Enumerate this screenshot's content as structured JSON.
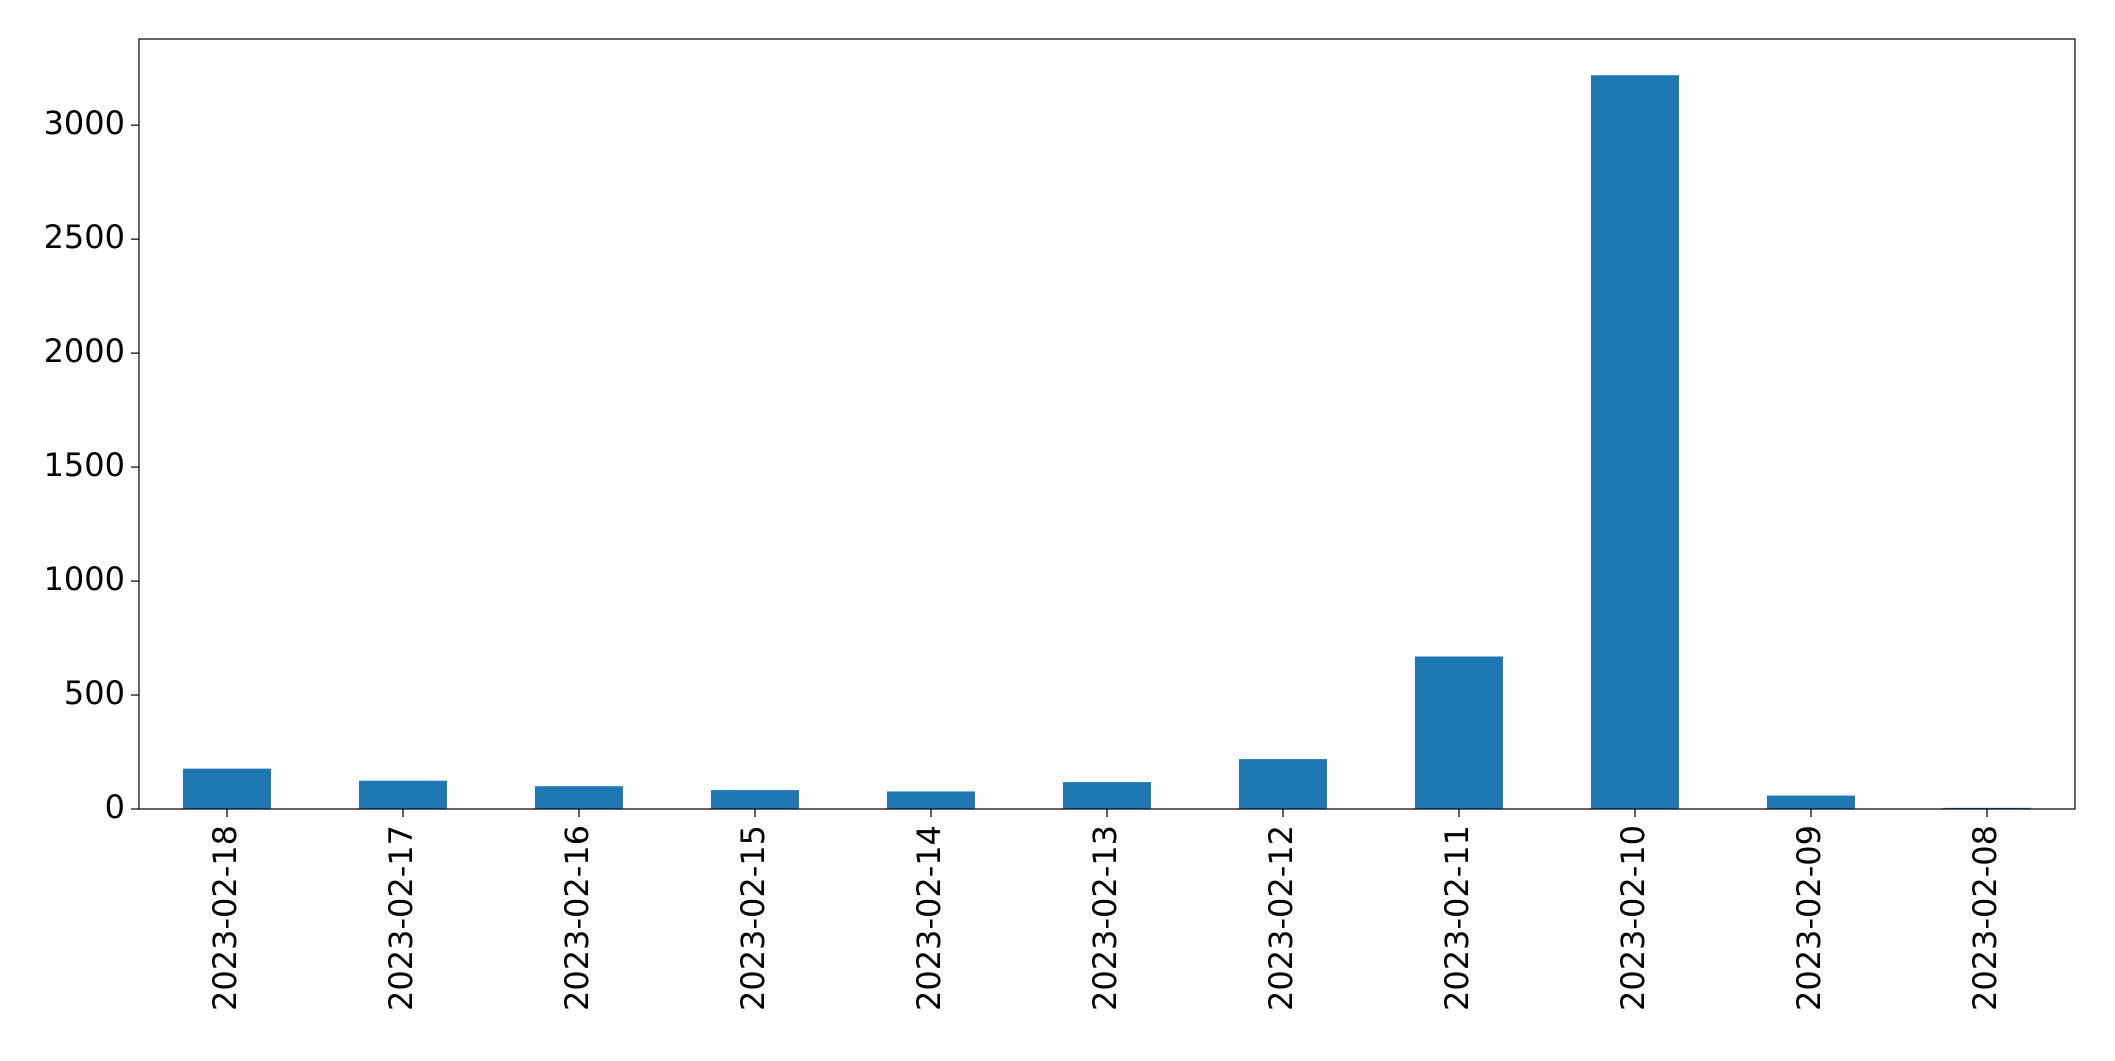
{
  "chart_data": {
    "type": "bar",
    "categories": [
      "2023-02-18",
      "2023-02-17",
      "2023-02-16",
      "2023-02-15",
      "2023-02-14",
      "2023-02-13",
      "2023-02-12",
      "2023-02-11",
      "2023-02-10",
      "2023-02-09",
      "2023-02-08"
    ],
    "values": [
      177,
      124,
      100,
      83,
      77,
      118,
      219,
      669,
      3219,
      59,
      5
    ],
    "color": "#1f77b4",
    "ylim": [
      0,
      3378
    ],
    "yticks": [
      0,
      500,
      1000,
      1500,
      2000,
      2500,
      3000
    ],
    "grid": false
  }
}
